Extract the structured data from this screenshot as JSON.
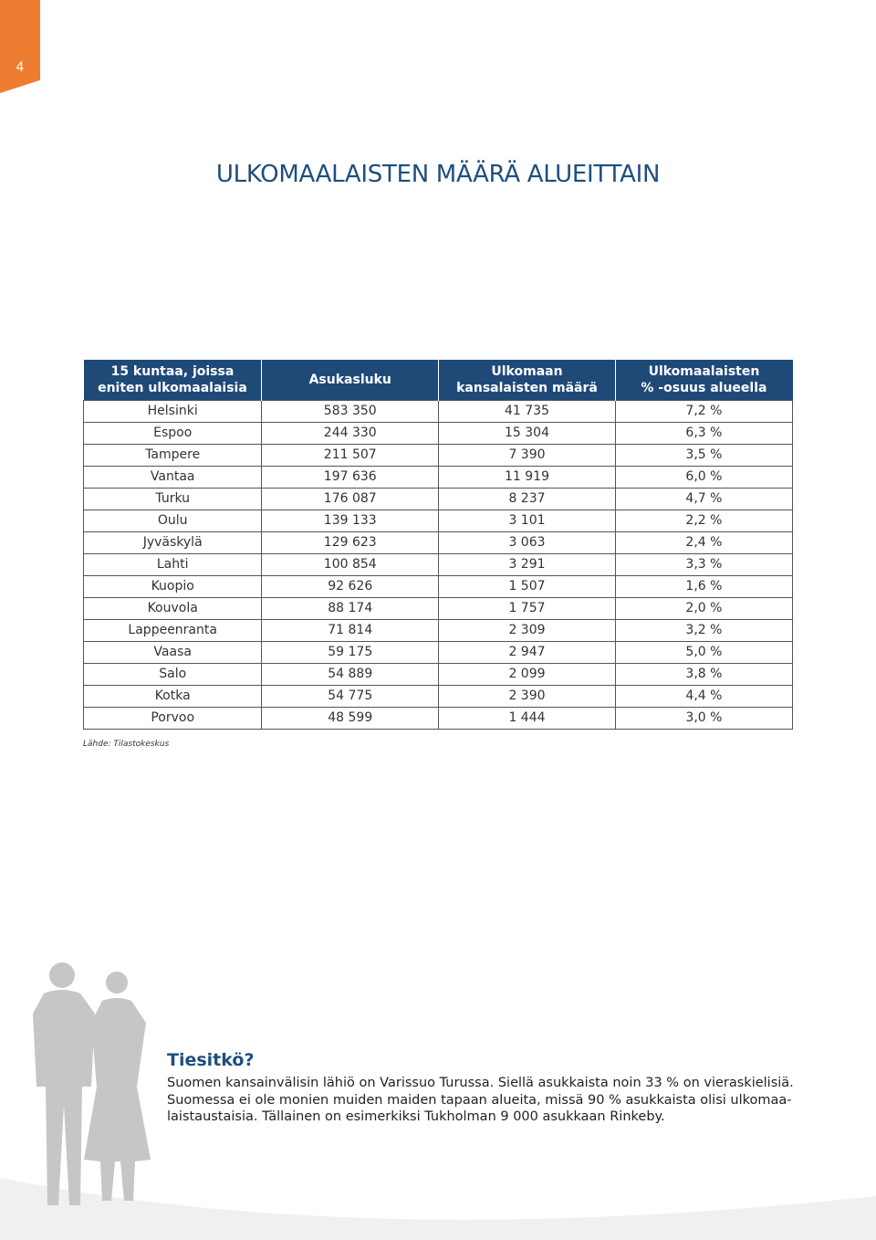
{
  "page_number": "4",
  "title": "ULKOMAALAISTEN MÄÄRÄ ALUEITTAIN",
  "table": {
    "header": [
      [
        "15 kuntaa, joissa",
        "eniten ulkomaalaisia"
      ],
      [
        "Asukasluku"
      ],
      [
        "Ulkomaan",
        "kansalaisten määrä"
      ],
      [
        "Ulkomaalaisten",
        "% -osuus alueella"
      ]
    ],
    "rows": [
      [
        "Helsinki",
        "583 350",
        "41 735",
        "7,2 %"
      ],
      [
        "Espoo",
        "244 330",
        "15 304",
        "6,3 %"
      ],
      [
        "Tampere",
        "211 507",
        "7 390",
        "3,5 %"
      ],
      [
        "Vantaa",
        "197 636",
        "11 919",
        "6,0 %"
      ],
      [
        "Turku",
        "176 087",
        "8 237",
        "4,7 %"
      ],
      [
        "Oulu",
        "139 133",
        "3 101",
        "2,2 %"
      ],
      [
        "Jyväskylä",
        "129 623",
        "3 063",
        "2,4 %"
      ],
      [
        "Lahti",
        "100 854",
        "3 291",
        "3,3 %"
      ],
      [
        "Kuopio",
        "92 626",
        "1 507",
        "1,6 %"
      ],
      [
        "Kouvola",
        "88 174",
        "1 757",
        "2,0 %"
      ],
      [
        "Lappeenranta",
        "71 814",
        "2 309",
        "3,2 %"
      ],
      [
        "Vaasa",
        "59 175",
        "2 947",
        "5,0 %"
      ],
      [
        "Salo",
        "54 889",
        "2 099",
        "3,8 %"
      ],
      [
        "Kotka",
        "54 775",
        "2 390",
        "4,4 %"
      ],
      [
        "Porvoo",
        "48 599",
        "1 444",
        "3,0 %"
      ]
    ]
  },
  "source": "Lähde: Tilastokeskus",
  "info": {
    "heading": "Tiesitkö?",
    "lines": [
      "Suomen kansainvälisin lähiö on Varissuo Turussa. Siellä asukkaista noin 33 % on vieraskielisiä.",
      "Suomessa ei ole monien muiden maiden tapaan alueita, missä 90 % asukkaista olisi ulkomaa-",
      "laistaustaisia. Tällainen on esimerkiksi Tukholman 9 000 asukkaan Rinkeby."
    ]
  }
}
